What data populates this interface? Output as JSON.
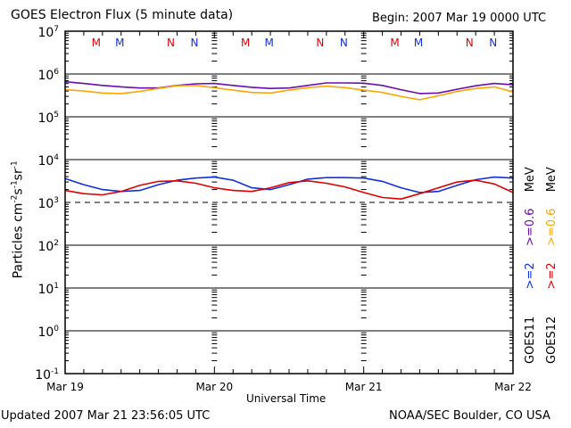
{
  "header": {
    "title": "GOES Electron Flux (5 minute data)",
    "begin": "Begin: 2007 Mar 19 0000 UTC"
  },
  "footer": {
    "updated": "Updated 2007 Mar 21 23:56:05 UTC",
    "credit": "NOAA/SEC Boulder, CO USA"
  },
  "legend": {
    "goes11": {
      "label": "GOES11",
      "e2": ">=2",
      "e06": ">=0.6",
      "unit": "MeV"
    },
    "goes12": {
      "label": "GOES12",
      "e2": ">=2",
      "e06": ">=0.6",
      "unit": "MeV"
    }
  },
  "chart_data": {
    "type": "line",
    "title": "GOES Electron Flux (5 minute data)",
    "xlabel": "Universal Time",
    "ylabel": "Particles cm^-2 s^-1 sr^-1",
    "yscale": "log",
    "ylim": [
      0.1,
      10000000
    ],
    "xlim_hours": [
      0,
      72
    ],
    "x_tick_labels": [
      "Mar 19",
      "Mar 20",
      "Mar 21",
      "Mar 22"
    ],
    "y_tick_labels": [
      {
        "base": "10",
        "exp": "7"
      },
      {
        "base": "10",
        "exp": "6"
      },
      {
        "base": "10",
        "exp": "5"
      },
      {
        "base": "10",
        "exp": "4"
      },
      {
        "base": "10",
        "exp": "3"
      },
      {
        "base": "10",
        "exp": "2"
      },
      {
        "base": "10",
        "exp": "1"
      },
      {
        "base": "10",
        "exp": "0"
      },
      {
        "base": "10",
        "exp": "-1"
      }
    ],
    "threshold": {
      "value": 1000,
      "style": "dashed"
    },
    "grid": "horizontal lines at 10^6, 10^5, 10^4, 10^2, 10^1, 10^0",
    "markers": [
      {
        "label": "M",
        "color": "#e00000",
        "hour": 5.0
      },
      {
        "label": "M",
        "color": "#1030e0",
        "hour": 8.8
      },
      {
        "label": "N",
        "color": "#e00000",
        "hour": 17.0
      },
      {
        "label": "N",
        "color": "#1030e0",
        "hour": 20.8
      },
      {
        "label": "M",
        "color": "#e00000",
        "hour": 29.0
      },
      {
        "label": "M",
        "color": "#1030e0",
        "hour": 32.8
      },
      {
        "label": "N",
        "color": "#e00000",
        "hour": 41.0
      },
      {
        "label": "N",
        "color": "#1030e0",
        "hour": 44.8
      },
      {
        "label": "M",
        "color": "#e00000",
        "hour": 53.0
      },
      {
        "label": "M",
        "color": "#1030e0",
        "hour": 56.8
      },
      {
        "label": "N",
        "color": "#e00000",
        "hour": 65.0
      },
      {
        "label": "N",
        "color": "#1030e0",
        "hour": 68.8
      }
    ],
    "x_hours": [
      0,
      3,
      6,
      9,
      12,
      15,
      18,
      21,
      24,
      27,
      30,
      33,
      36,
      39,
      42,
      45,
      48,
      51,
      54,
      57,
      60,
      63,
      66,
      69,
      72
    ],
    "series": [
      {
        "name": "GOES11 >=0.6 MeV",
        "color": "#6a0dad",
        "values": [
          660000,
          600000,
          540000,
          500000,
          470000,
          470000,
          540000,
          590000,
          600000,
          540000,
          490000,
          460000,
          470000,
          540000,
          620000,
          620000,
          610000,
          540000,
          430000,
          350000,
          360000,
          440000,
          530000,
          600000,
          560000
        ]
      },
      {
        "name": "GOES12 >=0.6 MeV",
        "color": "#ffa500",
        "values": [
          430000,
          400000,
          360000,
          350000,
          390000,
          460000,
          530000,
          540000,
          480000,
          420000,
          370000,
          360000,
          420000,
          480000,
          520000,
          480000,
          420000,
          370000,
          300000,
          250000,
          310000,
          390000,
          460000,
          500000,
          380000
        ]
      },
      {
        "name": "GOES11 >=2 MeV",
        "color": "#1030e0",
        "values": [
          3600,
          2600,
          2000,
          1800,
          1900,
          2600,
          3300,
          3700,
          3900,
          3300,
          2200,
          2000,
          2600,
          3500,
          3800,
          3800,
          3700,
          3100,
          2200,
          1700,
          1800,
          2500,
          3400,
          3900,
          3700
        ]
      },
      {
        "name": "GOES12 >=2 MeV",
        "color": "#e00000",
        "values": [
          1900,
          1600,
          1500,
          1800,
          2500,
          3100,
          3200,
          2800,
          2200,
          1900,
          1800,
          2200,
          2900,
          3200,
          2800,
          2300,
          1700,
          1300,
          1200,
          1600,
          2200,
          3000,
          3300,
          2700,
          1700
        ]
      }
    ]
  }
}
